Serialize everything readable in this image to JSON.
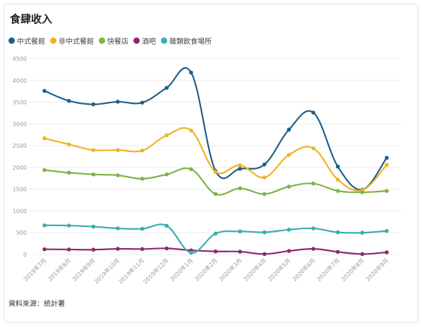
{
  "title": "食肆收入",
  "source": "資料來源：統計署",
  "chart_data": {
    "type": "line",
    "title": "食肆收入",
    "xlabel": "",
    "ylabel": "",
    "ylim": [
      0,
      4500
    ],
    "yticks": [
      0,
      500,
      1000,
      1500,
      2000,
      2500,
      3000,
      3500,
      4000,
      4500
    ],
    "grid": true,
    "legend_position": "top-left",
    "categories": [
      "2019年7月",
      "2019年8月",
      "2019年9月",
      "2019年10月",
      "2019年11月",
      "2019年12月",
      "2020年1月",
      "2020年2月",
      "2020年3月",
      "2020年4月",
      "2020年5月",
      "2020年6月",
      "2020年7月",
      "2020年8月",
      "2020年9月"
    ],
    "series": [
      {
        "name": "中式餐館",
        "color": "#1f5f8b",
        "values": [
          3760,
          3530,
          3450,
          3510,
          3490,
          3830,
          4180,
          1920,
          1970,
          2070,
          2870,
          3260,
          2020,
          1490,
          2220
        ]
      },
      {
        "name": "非中式餐館",
        "color": "#f0b323",
        "values": [
          2670,
          2530,
          2400,
          2400,
          2390,
          2740,
          2850,
          1900,
          2050,
          1770,
          2290,
          2440,
          1720,
          1480,
          2060
        ]
      },
      {
        "name": "快餐店",
        "color": "#7fb347",
        "values": [
          1940,
          1880,
          1840,
          1820,
          1740,
          1840,
          1960,
          1390,
          1520,
          1390,
          1560,
          1630,
          1460,
          1430,
          1460
        ]
      },
      {
        "name": "酒吧",
        "color": "#8b2a6e",
        "values": [
          120,
          115,
          110,
          130,
          125,
          140,
          95,
          70,
          65,
          10,
          80,
          130,
          60,
          10,
          50
        ]
      },
      {
        "name": "雜類飲食場所",
        "color": "#3aaeae",
        "values": [
          670,
          665,
          640,
          600,
          590,
          660,
          40,
          480,
          530,
          510,
          570,
          600,
          510,
          500,
          540
        ]
      }
    ]
  }
}
